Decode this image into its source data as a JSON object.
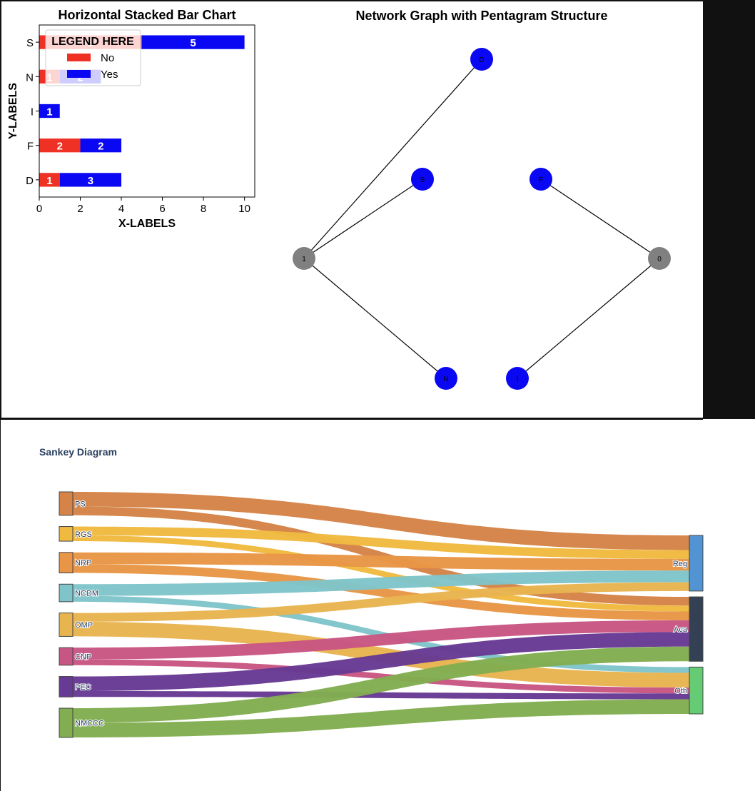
{
  "chart_data": [
    {
      "type": "bar",
      "orientation": "horizontal",
      "stacked": true,
      "title": "Horizontal Stacked Bar Chart",
      "xlabel": "X-LABELS",
      "ylabel": "Y-LABELS",
      "categories": [
        "D",
        "F",
        "I",
        "N",
        "S"
      ],
      "series": [
        {
          "name": "No",
          "values": [
            1,
            2,
            0,
            1,
            5
          ],
          "color": "#ee3124"
        },
        {
          "name": "Yes",
          "values": [
            3,
            2,
            1,
            2,
            5
          ],
          "color": "#0a08f2"
        }
      ],
      "xlim": [
        0,
        10.5
      ],
      "xticks": [
        "0",
        "2",
        "4",
        "6",
        "8",
        "10"
      ],
      "legend": {
        "title": "LEGEND HERE",
        "placement": "top-left"
      },
      "grid": false
    },
    {
      "type": "network",
      "title": "Network Graph with Pentagram Structure",
      "nodes": [
        {
          "id": "D",
          "label": "D",
          "color": "#0a08f2"
        },
        {
          "id": "S",
          "label": "S",
          "color": "#0a08f2"
        },
        {
          "id": "F",
          "label": "F",
          "color": "#0a08f2"
        },
        {
          "id": "1",
          "label": "1",
          "color": "#808080"
        },
        {
          "id": "0",
          "label": "0",
          "color": "#808080"
        },
        {
          "id": "N",
          "label": "N",
          "color": "#0a08f2"
        },
        {
          "id": "I",
          "label": "I",
          "color": "#0a08f2"
        }
      ],
      "edges": [
        [
          "1",
          "D"
        ],
        [
          "1",
          "S"
        ],
        [
          "1",
          "N"
        ],
        [
          "F",
          "0"
        ],
        [
          "0",
          "I"
        ]
      ]
    },
    {
      "type": "sankey",
      "title": "Sankey Diagram",
      "sources": [
        {
          "label": "PS",
          "color": "#d58347"
        },
        {
          "label": "RGS",
          "color": "#f0ba40"
        },
        {
          "label": "NRP",
          "color": "#e89645"
        },
        {
          "label": "NCDM",
          "color": "#7fc4c9"
        },
        {
          "label": "OMP",
          "color": "#e8b450"
        },
        {
          "label": "CNP",
          "color": "#c85683"
        },
        {
          "label": "PEC",
          "color": "#673a93"
        },
        {
          "label": "NMCCC",
          "color": "#82ad51"
        }
      ],
      "targets": [
        {
          "label": "Reg",
          "color": "#5293d4"
        },
        {
          "label": "Aca",
          "color": "#344154"
        },
        {
          "label": "Oth",
          "color": "#65cb75"
        }
      ],
      "links": [
        {
          "source": "PS",
          "target": "Reg",
          "value": 5
        },
        {
          "source": "PS",
          "target": "Aca",
          "value": 3
        },
        {
          "source": "RGS",
          "target": "Reg",
          "value": 3
        },
        {
          "source": "RGS",
          "target": "Aca",
          "value": 2
        },
        {
          "source": "NRP",
          "target": "Reg",
          "value": 4
        },
        {
          "source": "NRP",
          "target": "Aca",
          "value": 3
        },
        {
          "source": "NCDM",
          "target": "Reg",
          "value": 4
        },
        {
          "source": "NCDM",
          "target": "Oth",
          "value": 2
        },
        {
          "source": "OMP",
          "target": "Reg",
          "value": 3
        },
        {
          "source": "OMP",
          "target": "Oth",
          "value": 5
        },
        {
          "source": "CNP",
          "target": "Aca",
          "value": 4
        },
        {
          "source": "CNP",
          "target": "Oth",
          "value": 2
        },
        {
          "source": "PEC",
          "target": "Aca",
          "value": 5
        },
        {
          "source": "PEC",
          "target": "Oth",
          "value": 2
        },
        {
          "source": "NMCCC",
          "target": "Aca",
          "value": 5
        },
        {
          "source": "NMCCC",
          "target": "Oth",
          "value": 5
        }
      ]
    }
  ]
}
